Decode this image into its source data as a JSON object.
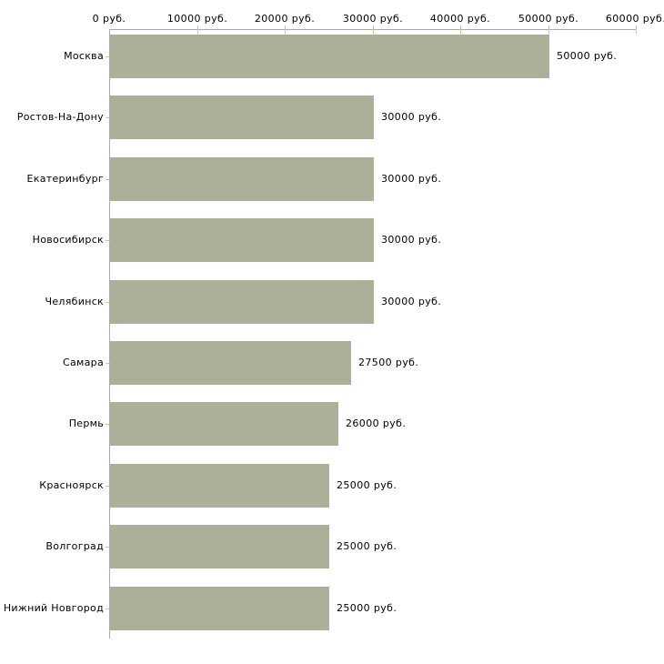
{
  "chart_data": {
    "type": "bar",
    "orientation": "horizontal",
    "title": "",
    "xlabel": "",
    "ylabel": "",
    "unit": "руб.",
    "categories": [
      "Москва",
      "Ростов-На-Дону",
      "Екатеринбург",
      "Новосибирск",
      "Челябинск",
      "Самара",
      "Пермь",
      "Красноярск",
      "Волгоград",
      "Нижний Новгород"
    ],
    "values": [
      50000,
      30000,
      30000,
      30000,
      30000,
      27500,
      26000,
      25000,
      25000,
      25000
    ],
    "value_labels": [
      "50000 руб.",
      "30000 руб.",
      "30000 руб.",
      "30000 руб.",
      "30000 руб.",
      "27500 руб.",
      "26000 руб.",
      "25000 руб.",
      "25000 руб.",
      "25000 руб."
    ],
    "x_ticks": [
      0,
      10000,
      20000,
      30000,
      40000,
      50000,
      60000
    ],
    "x_tick_labels": [
      "0 руб.",
      "10000 руб.",
      "20000 руб.",
      "30000 руб.",
      "40000 руб.",
      "50000 руб.",
      "60000 руб."
    ],
    "xlim": [
      0,
      60000
    ],
    "grid": false,
    "legend": null,
    "axis_position": "top",
    "colors": {
      "bar": "#abb198",
      "axis_line": "#ababab",
      "tick": "#c9c9a0",
      "text": "#000000",
      "background": "#ffffff"
    }
  }
}
